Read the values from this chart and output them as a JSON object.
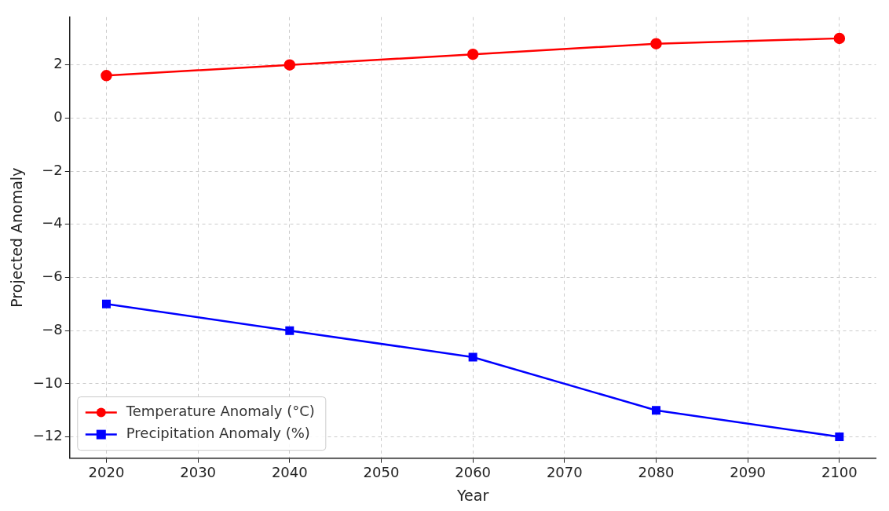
{
  "chart_data": {
    "type": "line",
    "xlabel": "Year",
    "ylabel": "Projected Anomaly",
    "x": [
      2020,
      2040,
      2060,
      2080,
      2100
    ],
    "series": [
      {
        "name": "Temperature Anomaly (°C)",
        "color": "#ff0000",
        "marker": "circle",
        "values": [
          1.6,
          2.0,
          2.4,
          2.8,
          3.0
        ]
      },
      {
        "name": "Precipitation Anomaly (%)",
        "color": "#0000ff",
        "marker": "square",
        "values": [
          -7,
          -8,
          -9,
          -11,
          -12
        ]
      }
    ],
    "xlim": [
      2016,
      2104
    ],
    "xticks": [
      2020,
      2030,
      2040,
      2050,
      2060,
      2070,
      2080,
      2090,
      2100
    ],
    "ylim": [
      -12.8,
      3.8
    ],
    "yticks": [
      -12,
      -10,
      -8,
      -6,
      -4,
      -2,
      0,
      2
    ],
    "grid": true,
    "legend": "bottom left",
    "line_style": "solid"
  }
}
